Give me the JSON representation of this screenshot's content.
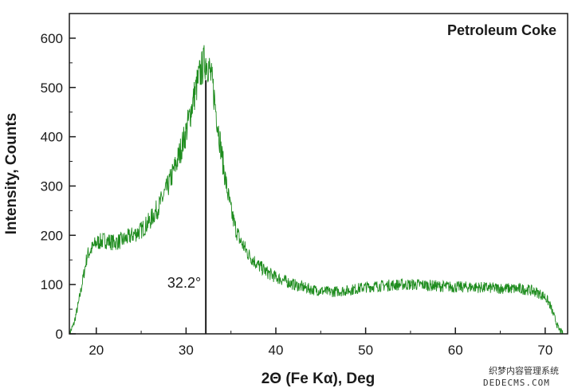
{
  "chart_data": {
    "type": "line",
    "title": "Petroleum Coke",
    "xlabel": "2Θ (Fe Kα), Deg",
    "ylabel": "Intensity, Counts",
    "xlim": [
      17,
      72.5
    ],
    "ylim": [
      0,
      650
    ],
    "xticks": [
      20,
      30,
      40,
      50,
      60,
      70
    ],
    "yticks": [
      0,
      100,
      200,
      300,
      400,
      500,
      600
    ],
    "grid": false,
    "line_color": "#1e8c1e",
    "series": [
      {
        "x": [
          17.0,
          17.5,
          18.0,
          18.5,
          19.0,
          20.0,
          21.0,
          22.0,
          23.0,
          24.0,
          25.0,
          26.0,
          27.0,
          28.0,
          29.0,
          30.0,
          30.5,
          31.0,
          31.5,
          32.0,
          32.2,
          32.5,
          33.0,
          33.5,
          34.0,
          34.5,
          35.0,
          35.5,
          36.0,
          37.0,
          38.0,
          39.0,
          40.0,
          42.0,
          44.0,
          46.0,
          48.0,
          50.0,
          52.0,
          54.0,
          56.0,
          58.0,
          60.0,
          62.0,
          64.0,
          66.0,
          68.0,
          69.0,
          70.0,
          70.5,
          71.0,
          71.5,
          72.0
        ],
        "y": [
          0,
          20,
          60,
          110,
          160,
          185,
          190,
          185,
          190,
          200,
          210,
          230,
          260,
          300,
          350,
          410,
          450,
          490,
          525,
          550,
          555,
          545,
          500,
          430,
          360,
          300,
          250,
          215,
          190,
          160,
          140,
          125,
          115,
          100,
          90,
          85,
          88,
          95,
          98,
          100,
          100,
          97,
          95,
          95,
          93,
          92,
          90,
          85,
          75,
          60,
          35,
          10,
          0
        ]
      }
    ],
    "annotations": [
      {
        "text": "32.2°",
        "x": 32.2
      }
    ]
  },
  "watermark": {
    "line1": "织梦内容管理系统",
    "line2": "DEDECMS.COM"
  }
}
